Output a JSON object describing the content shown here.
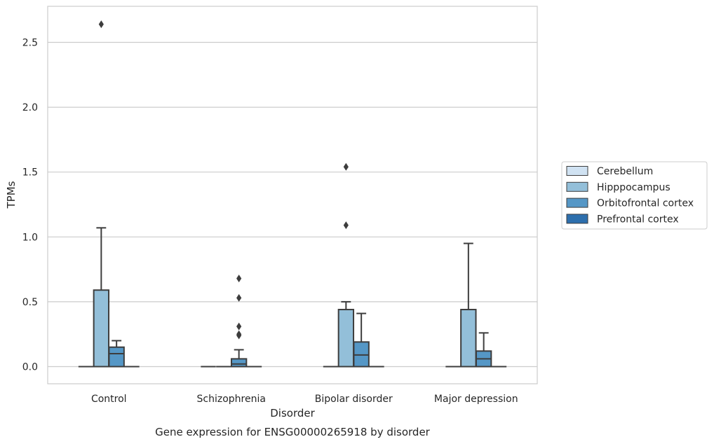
{
  "chart_data": {
    "type": "box",
    "title": "",
    "caption": "Gene expression for ENSG00000265918 by disorder",
    "xlabel": "Disorder",
    "ylabel": "TPMs",
    "ylim": [
      -0.13,
      2.78
    ],
    "yticks": [
      0.0,
      0.5,
      1.0,
      1.5,
      2.0,
      2.5
    ],
    "ytick_labels": [
      "0.0",
      "0.5",
      "1.0",
      "1.5",
      "2.0",
      "2.5"
    ],
    "grid": "horizontal",
    "legend_position": "right",
    "categories": [
      "Control",
      "Schizophrenia",
      "Bipolar disorder",
      "Major depression"
    ],
    "series": [
      {
        "name": "Cerebellum",
        "color": "#d0e2f2",
        "boxes": [
          {
            "q1": 0,
            "median": 0,
            "q3": 0,
            "whisker_low": 0,
            "whisker_high": 0,
            "outliers": []
          },
          {
            "q1": 0,
            "median": 0,
            "q3": 0,
            "whisker_low": 0,
            "whisker_high": 0,
            "outliers": []
          },
          {
            "q1": 0,
            "median": 0,
            "q3": 0,
            "whisker_low": 0,
            "whisker_high": 0,
            "outliers": []
          },
          {
            "q1": 0,
            "median": 0,
            "q3": 0,
            "whisker_low": 0,
            "whisker_high": 0,
            "outliers": []
          }
        ]
      },
      {
        "name": "Hipppocampus",
        "color": "#93bfd9",
        "boxes": [
          {
            "q1": 0,
            "median": 0,
            "q3": 0.59,
            "whisker_low": 0,
            "whisker_high": 1.07,
            "outliers": [
              2.64
            ]
          },
          {
            "q1": 0,
            "median": 0,
            "q3": 0,
            "whisker_low": 0,
            "whisker_high": 0,
            "outliers": []
          },
          {
            "q1": 0,
            "median": 0,
            "q3": 0.44,
            "whisker_low": 0,
            "whisker_high": 0.5,
            "outliers": [
              1.09,
              1.54
            ]
          },
          {
            "q1": 0,
            "median": 0,
            "q3": 0.44,
            "whisker_low": 0,
            "whisker_high": 0.95,
            "outliers": []
          }
        ]
      },
      {
        "name": "Orbitofrontal cortex",
        "color": "#5597c6",
        "boxes": [
          {
            "q1": 0,
            "median": 0.1,
            "q3": 0.15,
            "whisker_low": 0,
            "whisker_high": 0.2,
            "outliers": []
          },
          {
            "q1": 0,
            "median": 0.02,
            "q3": 0.06,
            "whisker_low": 0,
            "whisker_high": 0.13,
            "outliers": [
              0.24,
              0.25,
              0.31,
              0.53,
              0.68
            ]
          },
          {
            "q1": 0,
            "median": 0.09,
            "q3": 0.19,
            "whisker_low": 0,
            "whisker_high": 0.41,
            "outliers": []
          },
          {
            "q1": 0,
            "median": 0.06,
            "q3": 0.12,
            "whisker_low": 0,
            "whisker_high": 0.26,
            "outliers": []
          }
        ]
      },
      {
        "name": "Prefrontal cortex",
        "color": "#2d6fad",
        "boxes": [
          {
            "q1": 0,
            "median": 0,
            "q3": 0,
            "whisker_low": 0,
            "whisker_high": 0,
            "outliers": []
          },
          {
            "q1": 0,
            "median": 0,
            "q3": 0,
            "whisker_low": 0,
            "whisker_high": 0,
            "outliers": []
          },
          {
            "q1": 0,
            "median": 0,
            "q3": 0,
            "whisker_low": 0,
            "whisker_high": 0,
            "outliers": []
          },
          {
            "q1": 0,
            "median": 0,
            "q3": 0,
            "whisker_low": 0,
            "whisker_high": 0,
            "outliers": []
          }
        ]
      }
    ]
  }
}
